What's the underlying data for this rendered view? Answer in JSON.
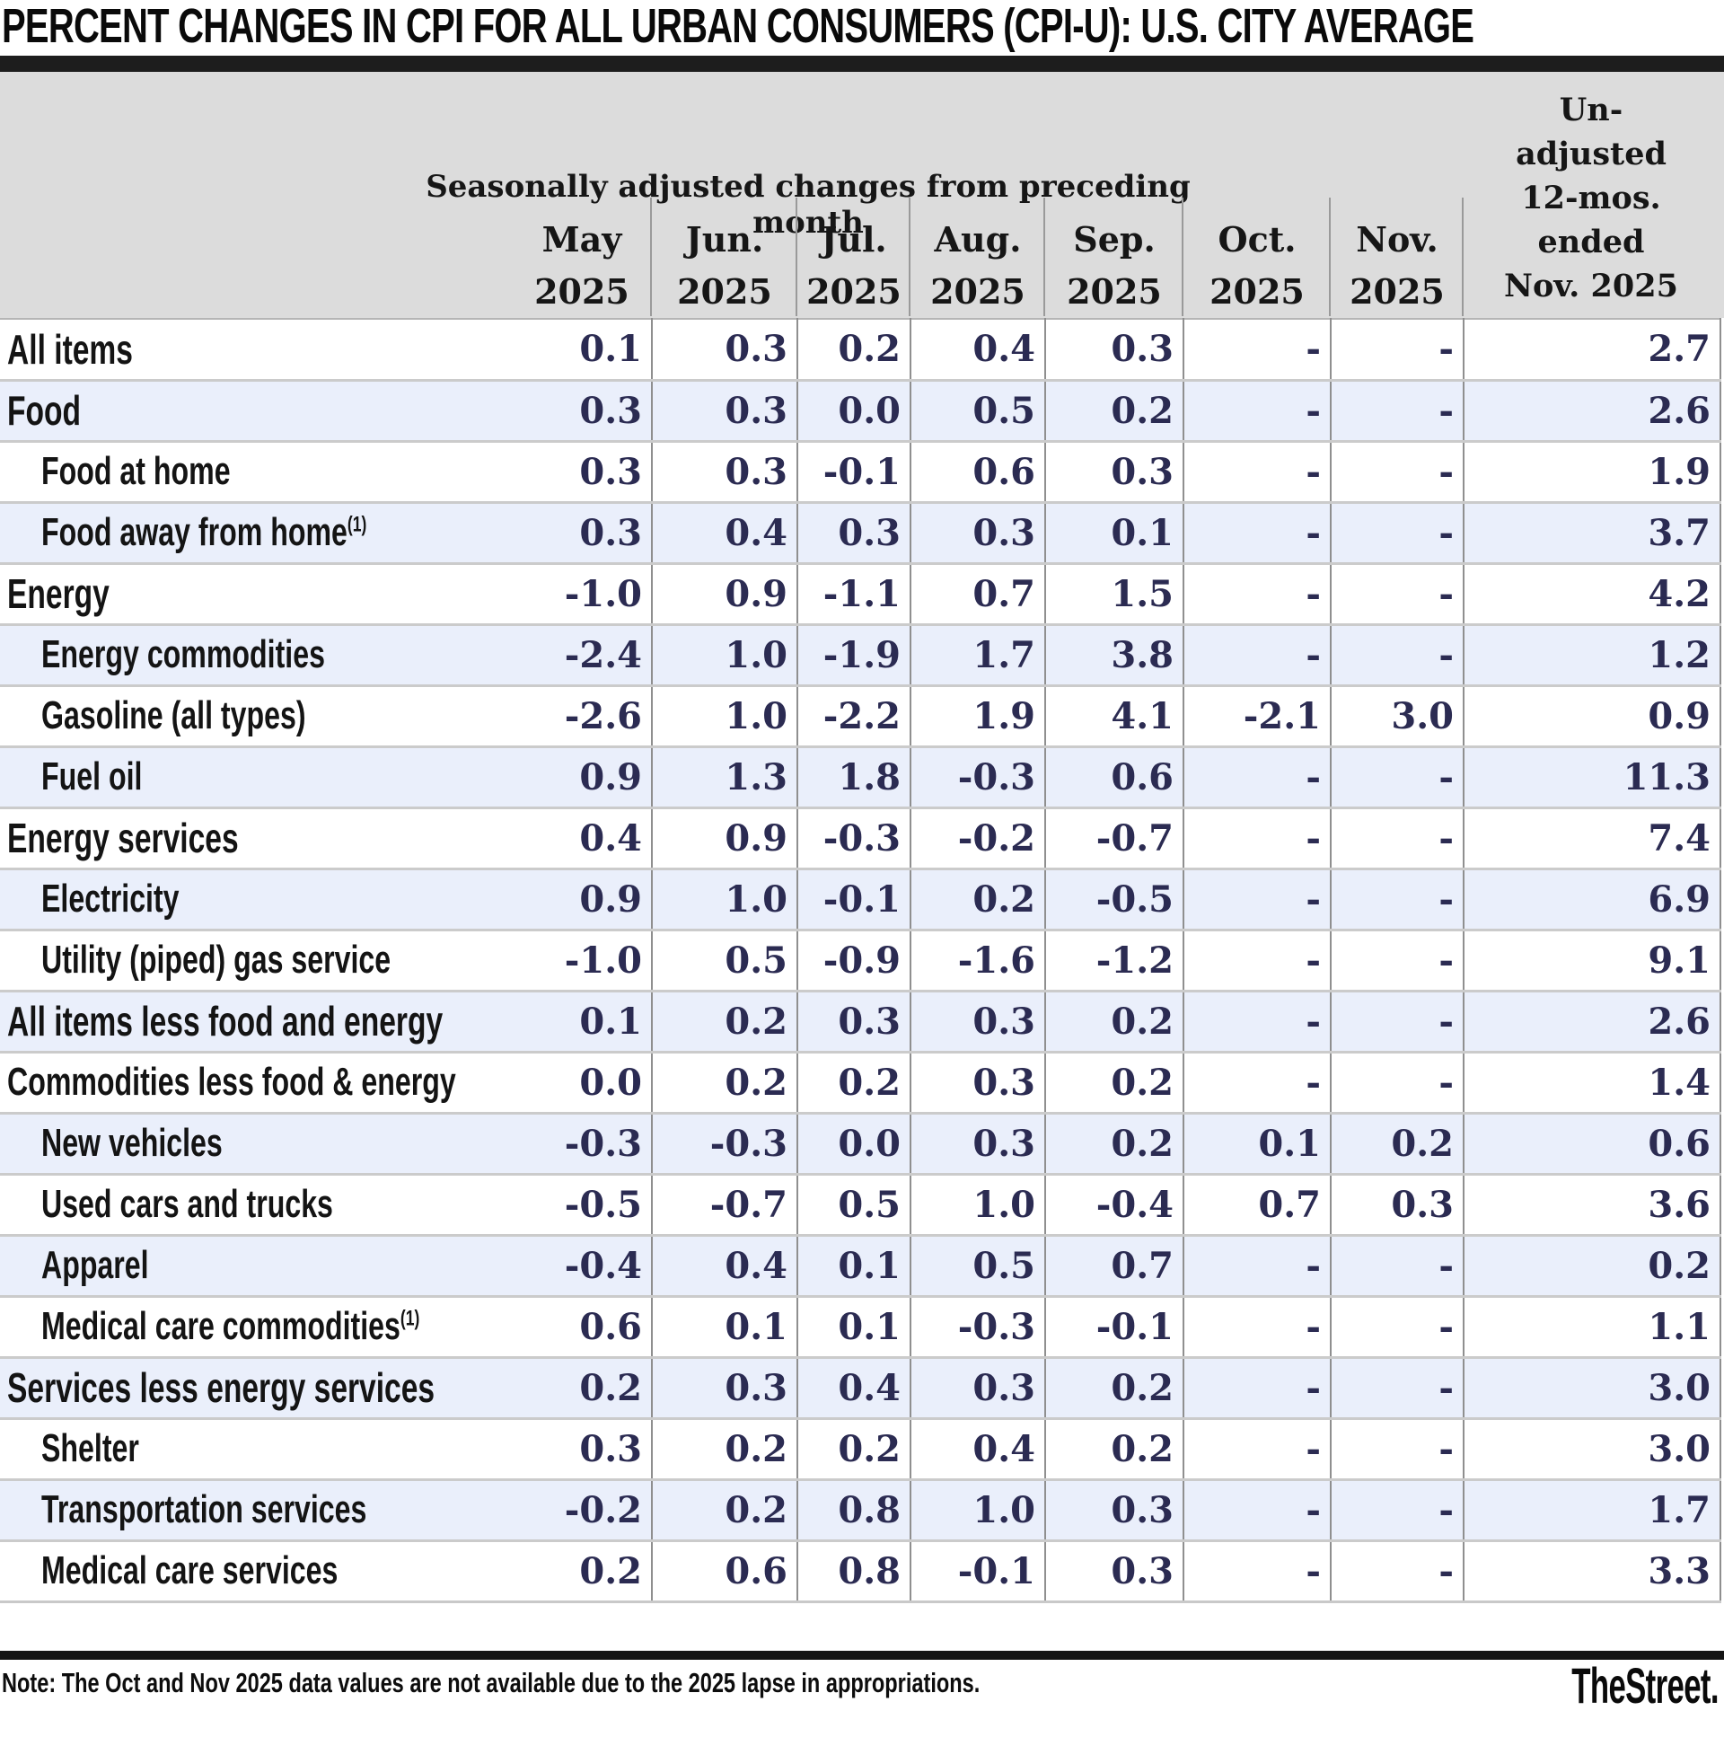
{
  "title": "PERCENT CHANGES IN CPI FOR ALL URBAN CONSUMERS (CPI-U): U.S. CITY AVERAGE",
  "chart_data": {
    "type": "table",
    "title": "PERCENT CHANGES IN CPI FOR ALL URBAN CONSUMERS (CPI-U): U.S. CITY AVERAGE",
    "column_group_label": "Seasonally adjusted changes from preceding month",
    "month_columns": [
      {
        "line1": "May",
        "line2": "2025"
      },
      {
        "line1": "Jun.",
        "line2": "2025"
      },
      {
        "line1": "Jul.",
        "line2": "2025"
      },
      {
        "line1": "Aug.",
        "line2": "2025"
      },
      {
        "line1": "Sep.",
        "line2": "2025"
      },
      {
        "line1": "Oct.",
        "line2": "2025"
      },
      {
        "line1": "Nov.",
        "line2": "2025"
      }
    ],
    "annual_column_lines": [
      "Un-",
      "adjusted",
      "12-mos.",
      "ended",
      "Nov. 2025"
    ],
    "missing_value_display": "-",
    "rows": [
      {
        "label": "All items",
        "style": "bold",
        "sup": "",
        "values": [
          0.1,
          0.3,
          0.2,
          0.4,
          0.3,
          null,
          null,
          2.7
        ]
      },
      {
        "label": "Food",
        "style": "bold",
        "sup": "",
        "values": [
          0.3,
          0.3,
          0.0,
          0.5,
          0.2,
          null,
          null,
          2.6
        ]
      },
      {
        "label": "Food at home",
        "style": "indent",
        "sup": "",
        "values": [
          0.3,
          0.3,
          -0.1,
          0.6,
          0.3,
          null,
          null,
          1.9
        ]
      },
      {
        "label": "Food away from home",
        "style": "indent",
        "sup": "(1)",
        "values": [
          0.3,
          0.4,
          0.3,
          0.3,
          0.1,
          null,
          null,
          3.7
        ]
      },
      {
        "label": "Energy",
        "style": "bold",
        "sup": "",
        "values": [
          -1.0,
          0.9,
          -1.1,
          0.7,
          1.5,
          null,
          null,
          4.2
        ]
      },
      {
        "label": "Energy commodities",
        "style": "indent",
        "sup": "",
        "values": [
          -2.4,
          1.0,
          -1.9,
          1.7,
          3.8,
          null,
          null,
          1.2
        ]
      },
      {
        "label": "Gasoline (all types)",
        "style": "indent",
        "sup": "",
        "values": [
          -2.6,
          1.0,
          -2.2,
          1.9,
          4.1,
          -2.1,
          3.0,
          0.9
        ]
      },
      {
        "label": "Fuel oil",
        "style": "indent",
        "sup": "",
        "values": [
          0.9,
          1.3,
          1.8,
          -0.3,
          0.6,
          null,
          null,
          11.3
        ]
      },
      {
        "label": "Energy services",
        "style": "bold",
        "sup": "",
        "values": [
          0.4,
          0.9,
          -0.3,
          -0.2,
          -0.7,
          null,
          null,
          7.4
        ]
      },
      {
        "label": "Electricity",
        "style": "indent",
        "sup": "",
        "values": [
          0.9,
          1.0,
          -0.1,
          0.2,
          -0.5,
          null,
          null,
          6.9
        ]
      },
      {
        "label": "Utility (piped) gas service",
        "style": "indent",
        "sup": "",
        "values": [
          -1.0,
          0.5,
          -0.9,
          -1.6,
          -1.2,
          null,
          null,
          9.1
        ]
      },
      {
        "label": "All items less food and energy",
        "style": "bold",
        "sup": "",
        "values": [
          0.1,
          0.2,
          0.3,
          0.3,
          0.2,
          null,
          null,
          2.6
        ]
      },
      {
        "label": "Commodities less food & energy",
        "style": "plain",
        "sup": "",
        "values": [
          0.0,
          0.2,
          0.2,
          0.3,
          0.2,
          null,
          null,
          1.4
        ]
      },
      {
        "label": "New vehicles",
        "style": "indent",
        "sup": "",
        "values": [
          -0.3,
          -0.3,
          0.0,
          0.3,
          0.2,
          0.1,
          0.2,
          0.6
        ]
      },
      {
        "label": "Used cars and trucks",
        "style": "indent",
        "sup": "",
        "values": [
          -0.5,
          -0.7,
          0.5,
          1.0,
          -0.4,
          0.7,
          0.3,
          3.6
        ]
      },
      {
        "label": "Apparel",
        "style": "indent",
        "sup": "",
        "values": [
          -0.4,
          0.4,
          0.1,
          0.5,
          0.7,
          null,
          null,
          0.2
        ]
      },
      {
        "label": "Medical care commodities",
        "style": "indent",
        "sup": "(1)",
        "values": [
          0.6,
          0.1,
          0.1,
          -0.3,
          -0.1,
          null,
          null,
          1.1
        ]
      },
      {
        "label": "Services less energy services",
        "style": "bold",
        "sup": "",
        "values": [
          0.2,
          0.3,
          0.4,
          0.3,
          0.2,
          null,
          null,
          3.0
        ]
      },
      {
        "label": "Shelter",
        "style": "indent",
        "sup": "",
        "values": [
          0.3,
          0.2,
          0.2,
          0.4,
          0.2,
          null,
          null,
          3.0
        ]
      },
      {
        "label": "Transportation services",
        "style": "indent",
        "sup": "",
        "values": [
          -0.2,
          0.2,
          0.8,
          1.0,
          0.3,
          null,
          null,
          1.7
        ]
      },
      {
        "label": "Medical care services",
        "style": "indent",
        "sup": "",
        "values": [
          0.2,
          0.6,
          0.8,
          -0.1,
          0.3,
          null,
          null,
          3.3
        ]
      }
    ]
  },
  "footer": {
    "note": "Note: The Oct and Nov 2025 data values are not available due to the 2025 lapse in appropriations.",
    "brand": "TheStreet."
  },
  "colors": {
    "bar_black": "#1d1d1d",
    "header_gray": "#dcdcdc",
    "row_alt_blue": "#eaeffb",
    "value_text": "#2b2b52",
    "grid_line": "#8f8f8f"
  }
}
